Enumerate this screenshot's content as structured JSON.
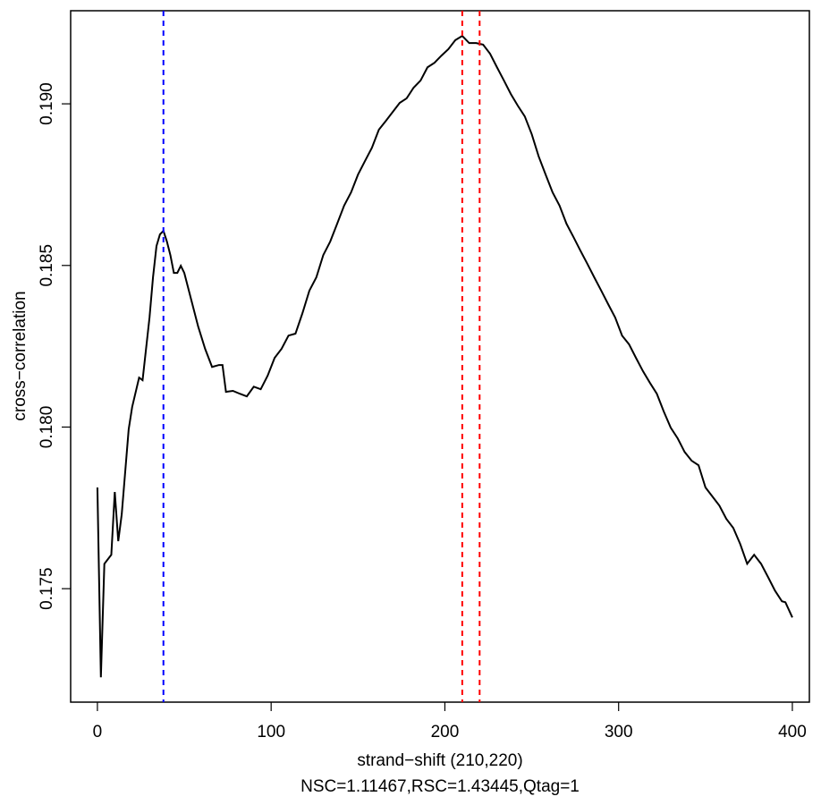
{
  "chart_data": {
    "type": "line",
    "xlabel": "strand−shift (210,220)",
    "subtitle": "NSC=1.11467,RSC=1.43445,Qtag=1",
    "ylabel": "cross−correlation",
    "color": "#000000",
    "x": [
      0,
      2,
      4,
      8,
      10,
      12,
      14,
      18,
      20,
      24,
      26,
      28,
      30,
      32,
      34,
      36,
      38,
      40,
      42,
      44,
      46,
      48,
      50,
      54,
      58,
      62,
      66,
      70,
      72,
      74,
      78,
      82,
      86,
      90,
      94,
      98,
      102,
      106,
      110,
      114,
      118,
      122,
      126,
      130,
      134,
      138,
      142,
      146,
      150,
      154,
      158,
      162,
      166,
      170,
      174,
      178,
      182,
      186,
      190,
      194,
      198,
      202,
      206,
      210,
      214,
      218,
      222,
      226,
      230,
      234,
      238,
      242,
      246,
      250,
      254,
      258,
      262,
      266,
      270,
      274,
      278,
      282,
      286,
      290,
      294,
      298,
      302,
      306,
      310,
      314,
      318,
      322,
      326,
      330,
      334,
      338,
      342,
      346,
      350,
      354,
      358,
      362,
      366,
      370,
      374,
      378,
      382,
      386,
      390,
      394,
      396,
      400
    ],
    "values": [
      0.17813,
      0.17226,
      0.17577,
      0.17605,
      0.17799,
      0.17647,
      0.1773,
      0.17993,
      0.18062,
      0.18153,
      0.18145,
      0.18242,
      0.18339,
      0.18463,
      0.1856,
      0.18596,
      0.18607,
      0.18574,
      0.18532,
      0.18477,
      0.18477,
      0.18499,
      0.18477,
      0.18394,
      0.18311,
      0.18242,
      0.18186,
      0.18192,
      0.18192,
      0.18109,
      0.18112,
      0.18103,
      0.18095,
      0.18125,
      0.18117,
      0.18159,
      0.18214,
      0.18242,
      0.18283,
      0.18289,
      0.18352,
      0.18422,
      0.18463,
      0.18532,
      0.18574,
      0.18629,
      0.18685,
      0.18726,
      0.18781,
      0.18823,
      0.18864,
      0.1892,
      0.18947,
      0.18975,
      0.19003,
      0.19017,
      0.1905,
      0.19072,
      0.19113,
      0.19127,
      0.19149,
      0.19169,
      0.19197,
      0.1921,
      0.19188,
      0.19188,
      0.19183,
      0.19155,
      0.19113,
      0.19072,
      0.1903,
      0.18994,
      0.18961,
      0.18906,
      0.18837,
      0.18781,
      0.18726,
      0.18685,
      0.18629,
      0.18588,
      0.18546,
      0.18505,
      0.18463,
      0.18422,
      0.1838,
      0.18339,
      0.18283,
      0.18256,
      0.18214,
      0.18173,
      0.18137,
      0.18103,
      0.18048,
      0.17998,
      0.17965,
      0.17923,
      0.17896,
      0.17882,
      0.17813,
      0.17785,
      0.17757,
      0.17716,
      0.17688,
      0.17638,
      0.17577,
      0.17605,
      0.17577,
      0.17536,
      0.17494,
      0.17461,
      0.17458,
      0.17411
    ],
    "vlines": [
      {
        "x": 38,
        "color": "#0000ff"
      },
      {
        "x": 210,
        "color": "#ff0000"
      },
      {
        "x": 220,
        "color": "#ff0000"
      }
    ],
    "xlim": [
      -15.4,
      409.8
    ],
    "xticks": [
      0,
      100,
      200,
      300,
      400
    ],
    "ylim": [
      0.17149,
      0.19288
    ],
    "yticks": [
      0.175,
      {
        "value": 0.18,
        "label": "0.180"
      },
      0.185,
      {
        "value": 0.19,
        "label": "0.190"
      }
    ]
  }
}
